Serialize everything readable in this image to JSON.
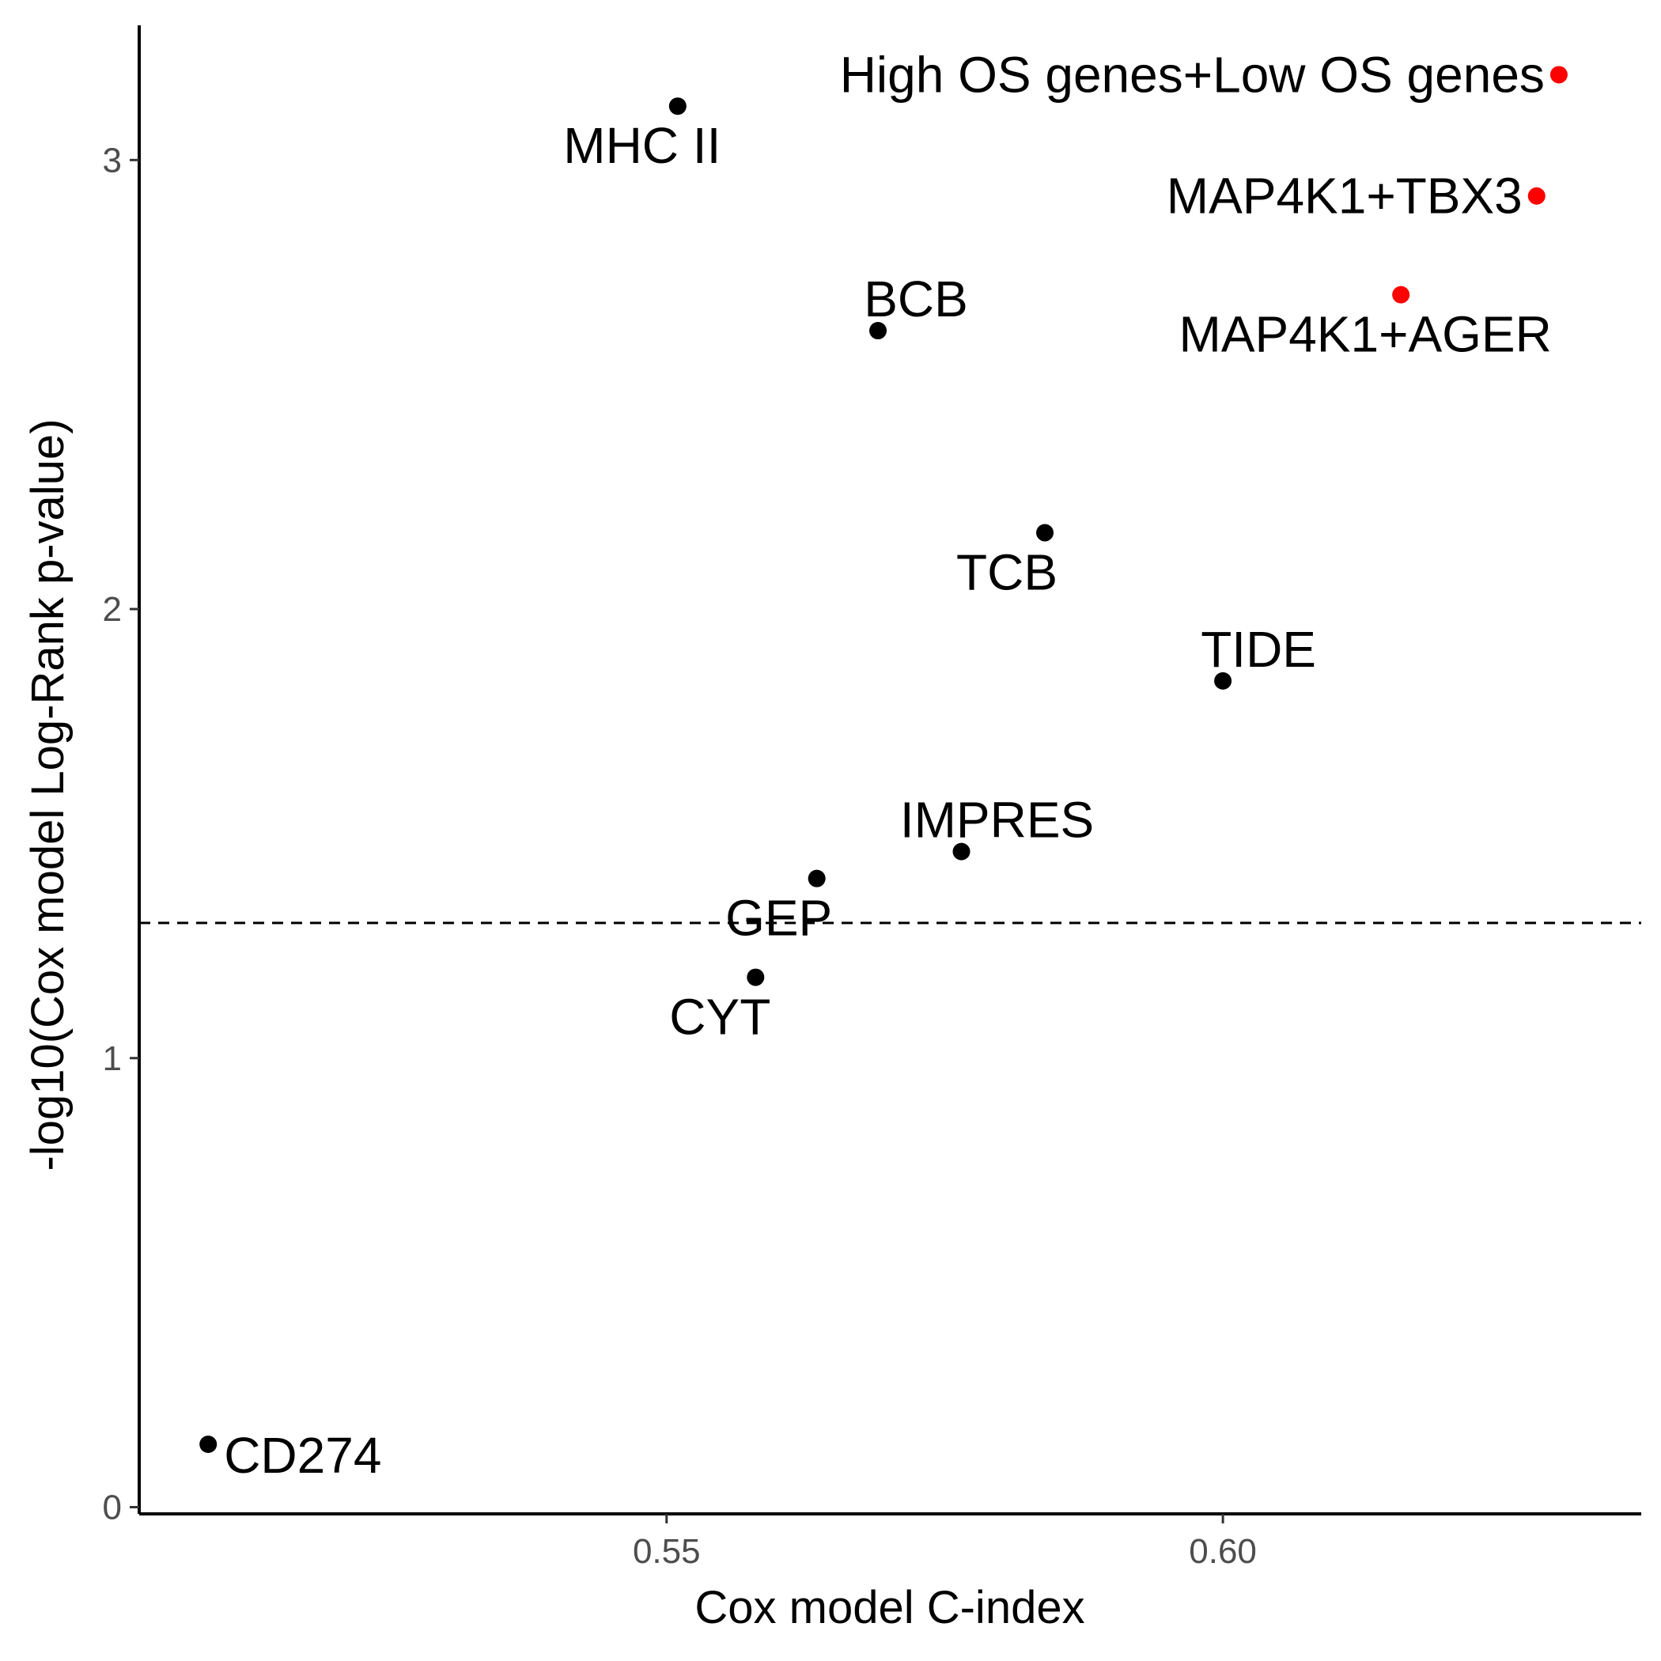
{
  "chart_data": {
    "type": "scatter",
    "title": "",
    "xlabel": "Cox model C-index",
    "ylabel": "-log10(Cox model Log-Rank p-value)",
    "xlim": [
      0.5026,
      0.6376
    ],
    "ylim": [
      -0.015,
      3.3
    ],
    "x_ticks": [
      {
        "value": 0.55,
        "label": "0.55"
      },
      {
        "value": 0.6,
        "label": "0.60"
      }
    ],
    "y_ticks": [
      {
        "value": 0,
        "label": "0"
      },
      {
        "value": 1,
        "label": "1"
      },
      {
        "value": 2,
        "label": "2"
      },
      {
        "value": 3,
        "label": "3"
      }
    ],
    "reference_line": {
      "y": 1.301,
      "style": "dashed"
    },
    "grid": false,
    "legend": "none",
    "colors": {
      "default": "#000000",
      "highlight": "#ff0000"
    },
    "points": [
      {
        "label": "High OS genes+Low OS genes",
        "x": 0.6302,
        "y": 3.19,
        "color": "#ff0000",
        "anchor": "end",
        "dx": -18,
        "dy": 0
      },
      {
        "label": "MAP4K1+TBX3",
        "x": 0.6282,
        "y": 2.92,
        "color": "#ff0000",
        "anchor": "end",
        "dx": -18,
        "dy": 0
      },
      {
        "label": "MAP4K1+AGER",
        "x": 0.616,
        "y": 2.7,
        "color": "#ff0000",
        "anchor": "middle",
        "dx": -45,
        "dy": 50
      },
      {
        "label": "MHC II",
        "x": 0.551,
        "y": 3.12,
        "color": "#000000",
        "anchor": "middle",
        "dx": -45,
        "dy": 50
      },
      {
        "label": "BCB",
        "x": 0.569,
        "y": 2.62,
        "color": "#000000",
        "anchor": "middle",
        "dx": 48,
        "dy": -40
      },
      {
        "label": "TCB",
        "x": 0.584,
        "y": 2.17,
        "color": "#000000",
        "anchor": "middle",
        "dx": -48,
        "dy": 50
      },
      {
        "label": "TIDE",
        "x": 0.6,
        "y": 1.84,
        "color": "#000000",
        "anchor": "middle",
        "dx": 45,
        "dy": -40
      },
      {
        "label": "IMPRES",
        "x": 0.5765,
        "y": 1.46,
        "color": "#000000",
        "anchor": "middle",
        "dx": 45,
        "dy": -40
      },
      {
        "label": "GEP",
        "x": 0.5635,
        "y": 1.4,
        "color": "#000000",
        "anchor": "middle",
        "dx": -48,
        "dy": 50
      },
      {
        "label": "CYT",
        "x": 0.558,
        "y": 1.18,
        "color": "#000000",
        "anchor": "middle",
        "dx": -45,
        "dy": 50
      },
      {
        "label": "CD274",
        "x": 0.5088,
        "y": 0.14,
        "color": "#000000",
        "anchor": "start",
        "dx": 20,
        "dy": 14
      }
    ]
  }
}
